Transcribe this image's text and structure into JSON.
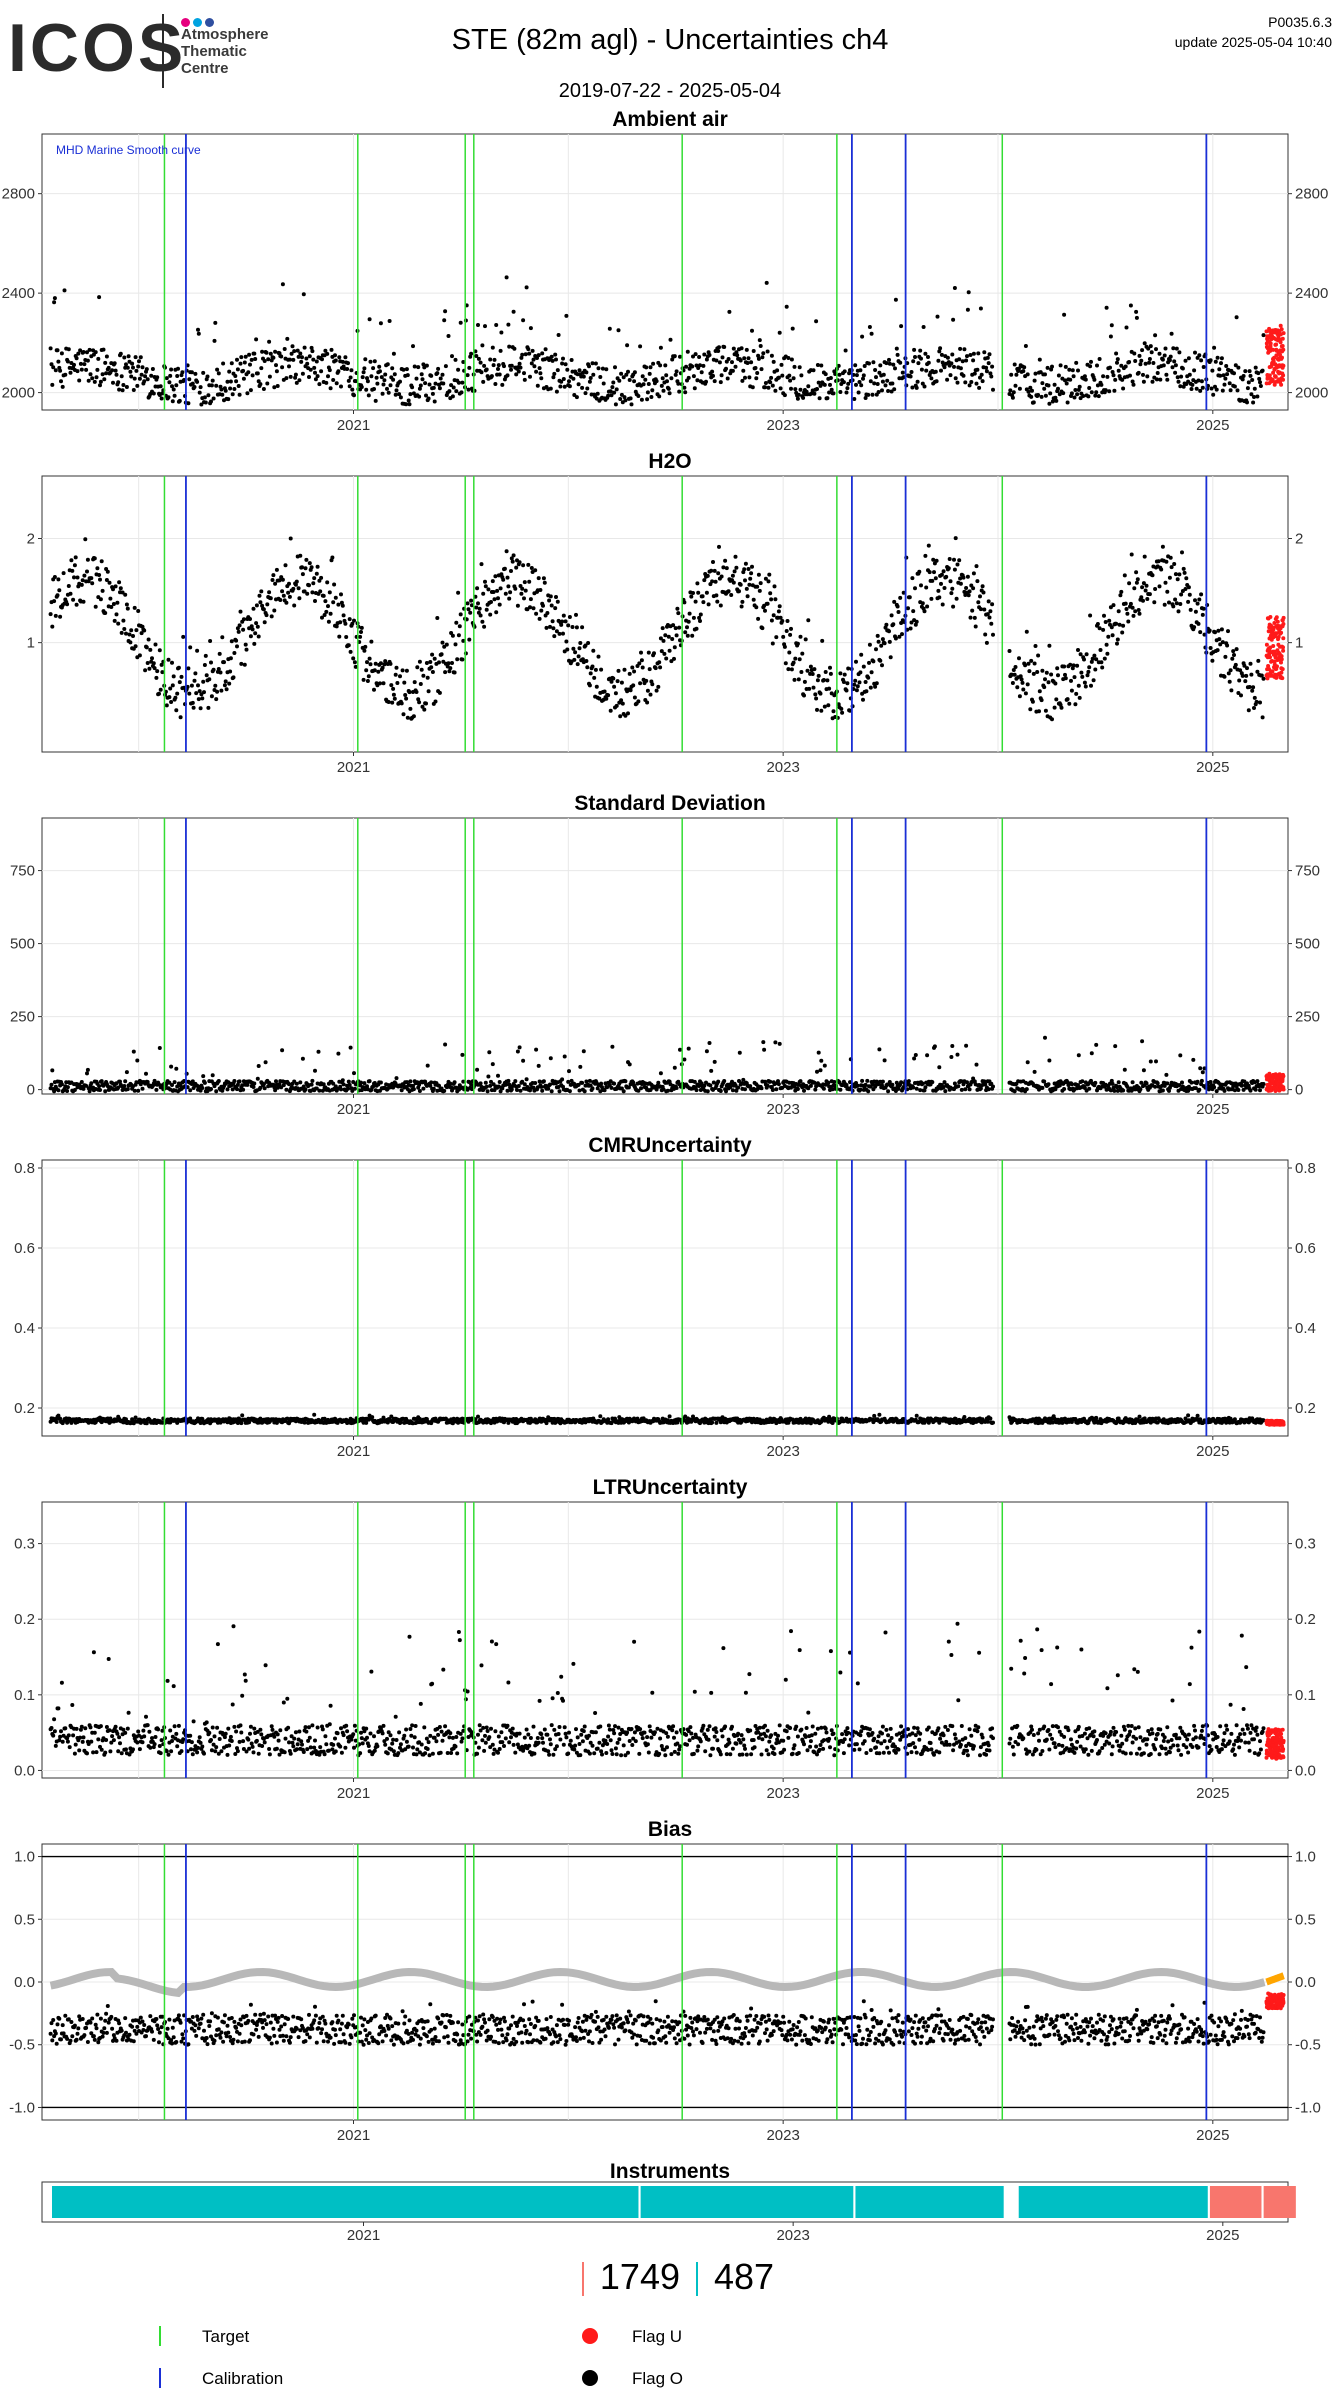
{
  "header": {
    "logo_text": "ICOS",
    "logo_sub_lines": [
      "Atmosphere",
      "Thematic",
      "Centre"
    ],
    "logo_dot_colors": [
      "#e6007e",
      "#00a3e0",
      "#2f4fa0"
    ],
    "title": "STE  (82m agl) - Uncertainties ch4",
    "date_range": "2019-07-22 - 2025-05-04",
    "version": "P0035.6.3",
    "update": "update  2025-05-04 10:40"
  },
  "colors": {
    "target": "#33dd33",
    "calibration": "#1a2fd6",
    "flag_u": "#ff1a1a",
    "flag_o": "#000000",
    "smooth": "#b8b8b8",
    "smooth_recent": "#ffa500",
    "instrument_a": "#00bfc4",
    "instrument_b": "#f8766d"
  },
  "chart_data": [
    {
      "type": "scatter",
      "title": "Ambient air",
      "annotation": "MHD Marine Smooth curve",
      "x_range": [
        2019.55,
        2025.35
      ],
      "ylim": [
        1930,
        3040
      ],
      "yticks": [
        2000,
        2400,
        2800
      ],
      "xticks": [
        2021,
        2023,
        2025
      ],
      "grid": true,
      "series_o": {
        "base": 2070,
        "amplitude": 80,
        "spike": 300,
        "seasonal": 40
      },
      "series_u": {
        "start": 2025.25,
        "base": 2150,
        "amplitude": 120
      }
    },
    {
      "type": "scatter",
      "title": "H2O",
      "x_range": [
        2019.55,
        2025.35
      ],
      "ylim": [
        -0.05,
        2.6
      ],
      "yticks": [
        1,
        2
      ],
      "xticks": [
        2021,
        2023,
        2025
      ],
      "grid": true,
      "series_o": {
        "base": 1.05,
        "amplitude": 0.25,
        "spike": 0.4,
        "seasonal": 0.55
      },
      "series_u": {
        "start": 2025.25,
        "base": 0.95,
        "amplitude": 0.3
      }
    },
    {
      "type": "scatter",
      "title": "Standard Deviation",
      "x_range": [
        2019.55,
        2025.35
      ],
      "ylim": [
        -15,
        930
      ],
      "yticks": [
        0,
        250,
        500,
        750
      ],
      "xticks": [
        2021,
        2023,
        2025
      ],
      "grid": true,
      "series_o": {
        "base": 12,
        "amplitude": 18,
        "spike": 150,
        "seasonal": 0
      },
      "series_u": {
        "start": 2025.25,
        "base": 25,
        "amplitude": 30
      }
    },
    {
      "type": "scatter",
      "title": "CMRUncertainty",
      "x_range": [
        2019.55,
        2025.35
      ],
      "ylim": [
        0.13,
        0.82
      ],
      "yticks": [
        0.2,
        0.4,
        0.6,
        0.8
      ],
      "xticks": [
        2021,
        2023,
        2025
      ],
      "grid": true,
      "series_o": {
        "base": 0.168,
        "amplitude": 0.006,
        "spike": 0.01,
        "seasonal": 0
      },
      "series_u": {
        "start": 2025.25,
        "base": 0.163,
        "amplitude": 0.005
      }
    },
    {
      "type": "scatter",
      "title": "LTRUncertainty",
      "x_range": [
        2019.55,
        2025.35
      ],
      "ylim": [
        -0.01,
        0.355
      ],
      "yticks": [
        0.0,
        0.1,
        0.2,
        0.3
      ],
      "xticks": [
        2021,
        2023,
        2025
      ],
      "grid": true,
      "series_o": {
        "base": 0.04,
        "amplitude": 0.02,
        "spike": 0.14,
        "seasonal": 0
      },
      "series_u": {
        "start": 2025.25,
        "base": 0.035,
        "amplitude": 0.02
      }
    },
    {
      "type": "scatter",
      "title": "Bias",
      "x_range": [
        2019.55,
        2025.35
      ],
      "ylim": [
        -1.1,
        1.1
      ],
      "yticks": [
        -1.0,
        -0.5,
        0.0,
        0.5,
        1.0
      ],
      "xticks": [
        2021,
        2023,
        2025
      ],
      "grid": true,
      "hlines": [
        -1.0,
        1.0
      ],
      "series_o": {
        "base": -0.38,
        "amplitude": 0.12,
        "spike": 0.15,
        "seasonal": 0
      },
      "series_u": {
        "start": 2025.25,
        "base": -0.15,
        "amplitude": 0.06
      },
      "smooth": {
        "value": 0.02
      }
    }
  ],
  "target_lines": [
    2020.12,
    2021.02,
    2021.52,
    2021.56,
    2022.53,
    2023.25,
    2024.02
  ],
  "calibration_lines": [
    2020.22,
    2023.32,
    2023.57,
    2024.97
  ],
  "instruments": {
    "title": "Instruments",
    "xticks": [
      2021,
      2023,
      2025
    ],
    "segments": [
      {
        "start": 2019.55,
        "end": 2022.28,
        "color": "instrument_a"
      },
      {
        "start": 2022.29,
        "end": 2023.28,
        "color": "instrument_a"
      },
      {
        "start": 2023.29,
        "end": 2023.98,
        "color": "instrument_a"
      },
      {
        "start": 2024.05,
        "end": 2024.93,
        "color": "instrument_a"
      },
      {
        "start": 2024.94,
        "end": 2025.18,
        "color": "instrument_b"
      },
      {
        "start": 2025.19,
        "end": 2025.34,
        "color": "instrument_b"
      }
    ]
  },
  "instrument_counts": [
    {
      "value": "1749",
      "color": "instrument_b"
    },
    {
      "value": "487",
      "color": "instrument_a"
    }
  ],
  "legend": {
    "target": "Target",
    "calibration": "Calibration",
    "flag_u": "Flag U",
    "flag_o": "Flag O"
  }
}
